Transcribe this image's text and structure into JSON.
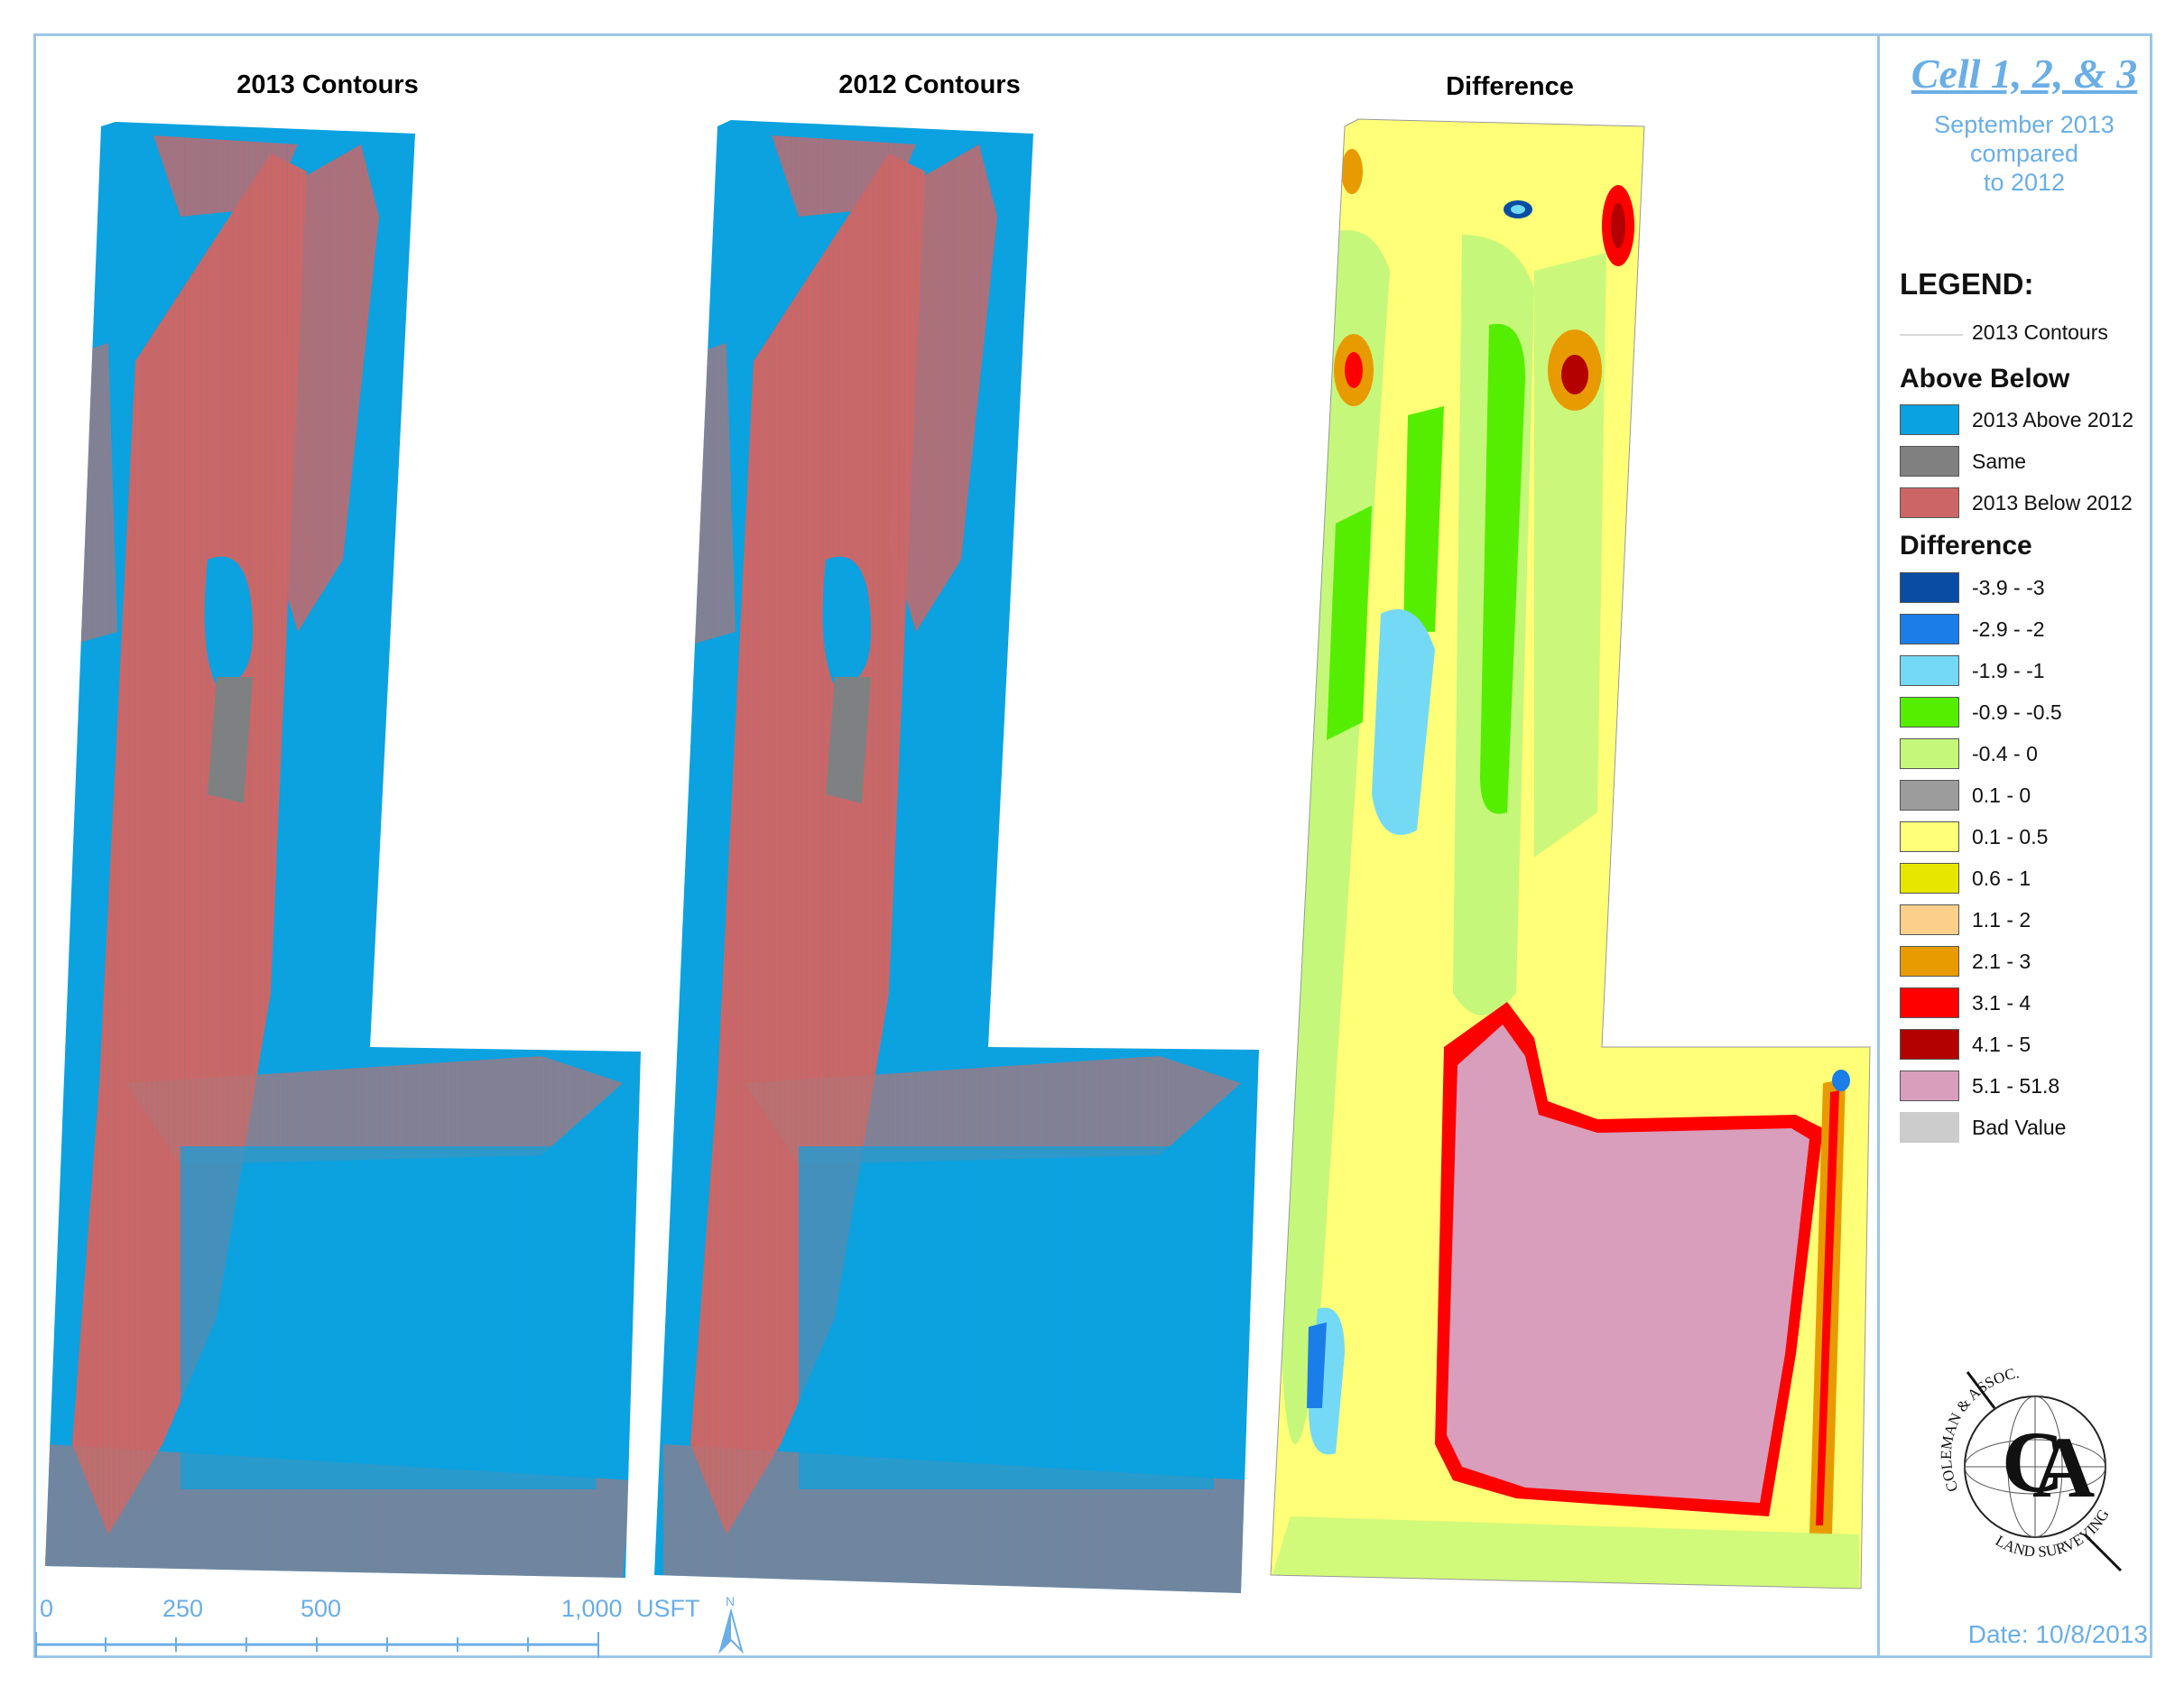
{
  "maps": {
    "title_2013": "2013 Contours",
    "title_2012": "2012 Contours",
    "title_diff": "Difference"
  },
  "scale_bar": {
    "labels": [
      "0",
      "250",
      "500",
      "1,000"
    ],
    "unit": "USFT",
    "north_label": "N"
  },
  "panel": {
    "title": "Cell 1, 2, & 3",
    "subtitle_line1": "September 2013",
    "subtitle_line2": "compared",
    "subtitle_line3": "to 2012",
    "legend_heading": "LEGEND:",
    "contour_label": "2013 Contours",
    "above_below_heading": "Above Below",
    "above_below": [
      {
        "label": "2013 Above 2012",
        "color": "#0aa2e0"
      },
      {
        "label": "Same",
        "color": "#808080"
      },
      {
        "label": "2013 Below 2012",
        "color": "#cc6666"
      }
    ],
    "difference_heading": "Difference",
    "difference": [
      {
        "label": "-3.9 - -3",
        "color": "#084ca3"
      },
      {
        "label": "-2.9 - -2",
        "color": "#1a7de8"
      },
      {
        "label": "-1.9 - -1",
        "color": "#73d9f5"
      },
      {
        "label": "-0.9 - -0.5",
        "color": "#55ee00"
      },
      {
        "label": "-0.4 - 0",
        "color": "#c5f77a"
      },
      {
        "label": "0.1 - 0",
        "color": "#9c9c9c"
      },
      {
        "label": "0.1 - 0.5",
        "color": "#ffff78"
      },
      {
        "label": "0.6 - 1",
        "color": "#e6e600"
      },
      {
        "label": "1.1 - 2",
        "color": "#fcd08a"
      },
      {
        "label": "2.1 - 3",
        "color": "#e89b00"
      },
      {
        "label": "3.1 - 4",
        "color": "#ff0000"
      },
      {
        "label": "4.1 - 5",
        "color": "#b30000"
      },
      {
        "label": "5.1 - 51.8",
        "color": "#d89ebc"
      },
      {
        "label": "Bad Value",
        "color": "#cccccc"
      }
    ],
    "date": "Date: 10/8/2013"
  }
}
